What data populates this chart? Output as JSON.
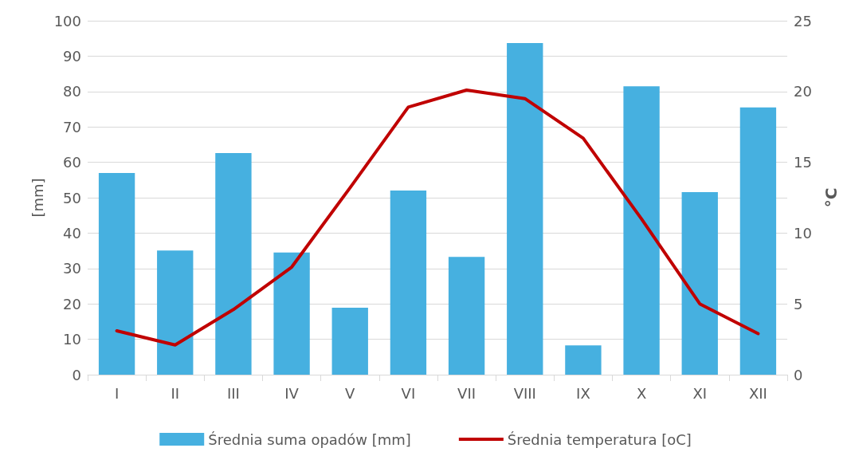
{
  "chart_data": {
    "type": "bar",
    "categories": [
      "I",
      "II",
      "III",
      "IV",
      "V",
      "VI",
      "VII",
      "VIII",
      "IX",
      "X",
      "XI",
      "XII"
    ],
    "ylabel": "[mm]",
    "y2label": "°C",
    "ylim": [
      0,
      100
    ],
    "yticks": [
      0,
      10,
      20,
      30,
      40,
      50,
      60,
      70,
      80,
      90,
      100
    ],
    "y2lim": [
      0,
      25
    ],
    "y2ticks": [
      0,
      5,
      10,
      15,
      20,
      25
    ],
    "grid": "y",
    "legend": "bottom",
    "marker": "none",
    "series": [
      {
        "name": "Średnia suma opadów [mm]",
        "color": "#46b0e0",
        "values": [
          57.0,
          35.1,
          62.6,
          34.5,
          18.9,
          52.0,
          33.3,
          93.7,
          8.3,
          81.5,
          51.6,
          75.5
        ]
      },
      {
        "name": "Średnia temperatura [oC]",
        "type": "line",
        "axis": "y2",
        "color": "#c00000",
        "values": [
          3.1,
          2.1,
          4.6,
          7.6,
          13.2,
          18.9,
          20.1,
          19.5,
          16.7,
          11.0,
          5.0,
          2.9
        ]
      }
    ]
  }
}
